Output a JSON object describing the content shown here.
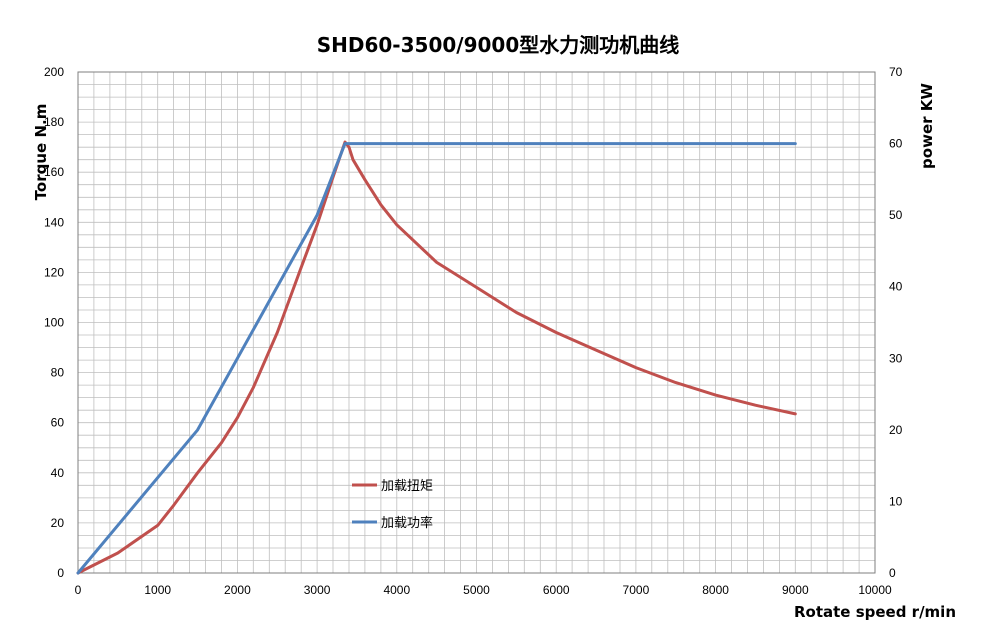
{
  "chart_data": {
    "type": "line",
    "title": "SHD60-3500/9000型水力测功机曲线",
    "xlabel": "Rotate speed r/min",
    "ylabel_left": "Torque N.m",
    "ylabel_right": "power KW",
    "xlim": [
      0,
      10000
    ],
    "ylim_left": [
      0,
      200
    ],
    "ylim_right": [
      0,
      70
    ],
    "x_ticks": [
      "0",
      "1000",
      "2000",
      "3000",
      "4000",
      "5000",
      "6000",
      "7000",
      "8000",
      "9000",
      "10000"
    ],
    "y_left_ticks": [
      "0",
      "20",
      "40",
      "60",
      "80",
      "100",
      "120",
      "140",
      "160",
      "180",
      "200"
    ],
    "y_right_ticks": [
      "0",
      "10",
      "20",
      "30",
      "40",
      "50",
      "60",
      "70"
    ],
    "grid": true,
    "series": [
      {
        "name": "加载扭矩",
        "axis": "left",
        "color": "#c0504d",
        "points": [
          [
            0,
            0
          ],
          [
            500,
            8
          ],
          [
            1000,
            19
          ],
          [
            1200,
            27
          ],
          [
            1500,
            40
          ],
          [
            1800,
            52
          ],
          [
            2000,
            62
          ],
          [
            2200,
            74
          ],
          [
            2500,
            96
          ],
          [
            2800,
            122
          ],
          [
            3000,
            139
          ],
          [
            3200,
            158
          ],
          [
            3350,
            172
          ],
          [
            3400,
            170
          ],
          [
            3450,
            165
          ],
          [
            3600,
            157
          ],
          [
            3800,
            147
          ],
          [
            4000,
            139
          ],
          [
            4500,
            124
          ],
          [
            5000,
            114
          ],
          [
            5500,
            104
          ],
          [
            6000,
            96
          ],
          [
            6500,
            89
          ],
          [
            7000,
            82
          ],
          [
            7500,
            76
          ],
          [
            8000,
            71
          ],
          [
            8500,
            67
          ],
          [
            9000,
            63.5
          ]
        ]
      },
      {
        "name": "加载功率",
        "axis": "right",
        "color": "#4f81bd",
        "points": [
          [
            0,
            0
          ],
          [
            1500,
            20
          ],
          [
            3000,
            50
          ],
          [
            3350,
            60
          ],
          [
            3500,
            60
          ],
          [
            9000,
            60
          ]
        ]
      }
    ],
    "legend": [
      "加载扭矩",
      "加载功率"
    ],
    "legend_position": "center-left"
  }
}
